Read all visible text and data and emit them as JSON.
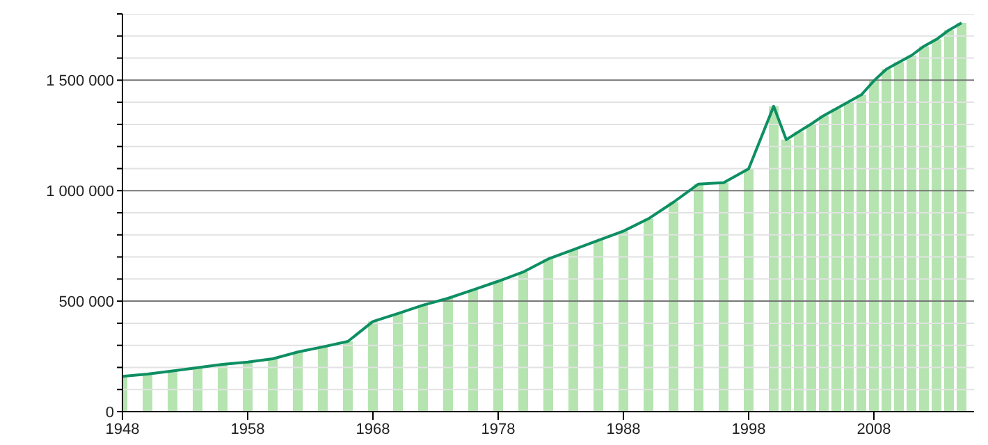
{
  "chart_data": {
    "type": "bar",
    "x": [
      1948,
      1950,
      1952,
      1954,
      1956,
      1958,
      1960,
      1962,
      1964,
      1966,
      1968,
      1970,
      1972,
      1974,
      1976,
      1978,
      1980,
      1982,
      1984,
      1986,
      1988,
      1990,
      1992,
      1994,
      1996,
      1998,
      2000,
      2001,
      2002,
      2003,
      2004,
      2005,
      2006,
      2007,
      2008,
      2009,
      2010,
      2011,
      2012,
      2013,
      2014,
      2015
    ],
    "series": [
      {
        "color": "#b5e4b0",
        "values": [
          160000,
          170000,
          184000,
          199000,
          214000,
          224000,
          239000,
          270000,
          293000,
          318000,
          408000,
          444000,
          482000,
          513000,
          551000,
          590000,
          632000,
          691000,
          733000,
          775000,
          817000,
          873000,
          948000,
          1030000,
          1036000,
          1099000,
          1382000,
          1231000,
          1267000,
          1302000,
          1340000,
          1371000,
          1403000,
          1434000,
          1497000,
          1550000,
          1581000,
          1612000,
          1654000,
          1685000,
          1727000,
          1759000
        ]
      },
      {
        "type": "line",
        "color": "#0e8f63",
        "values": [
          160000,
          170000,
          184000,
          199000,
          214000,
          224000,
          239000,
          270000,
          293000,
          318000,
          408000,
          444000,
          482000,
          513000,
          551000,
          590000,
          632000,
          691000,
          733000,
          775000,
          817000,
          873000,
          948000,
          1030000,
          1036000,
          1099000,
          1382000,
          1231000,
          1267000,
          1302000,
          1340000,
          1371000,
          1403000,
          1434000,
          1497000,
          1550000,
          1581000,
          1612000,
          1654000,
          1685000,
          1727000,
          1759000
        ]
      }
    ],
    "xlim": [
      1948,
      2016
    ],
    "xticks": [
      1948,
      1958,
      1968,
      1978,
      1988,
      1998,
      2008
    ],
    "ylim": [
      0,
      1800000
    ],
    "yticks": [
      0,
      {
        "value": 100000,
        "label": null
      },
      {
        "value": 200000,
        "label": null
      },
      {
        "value": 300000,
        "label": null
      },
      {
        "value": 400000,
        "label": null
      },
      {
        "value": 500000,
        "label": "500 000"
      },
      {
        "value": 600000,
        "label": null
      },
      {
        "value": 700000,
        "label": null
      },
      {
        "value": 800000,
        "label": null
      },
      {
        "value": 900000,
        "label": null
      },
      {
        "value": 1000000,
        "label": "1 000 000"
      },
      {
        "value": 1100000,
        "label": null
      },
      {
        "value": 1200000,
        "label": null
      },
      {
        "value": 1300000,
        "label": null
      },
      {
        "value": 1400000,
        "label": null
      },
      {
        "value": 1500000,
        "label": "1 500 000"
      },
      {
        "value": 1600000,
        "label": null
      },
      {
        "value": 1700000,
        "label": null
      },
      {
        "value": 1800000,
        "label": null
      }
    ],
    "grid": "y"
  }
}
